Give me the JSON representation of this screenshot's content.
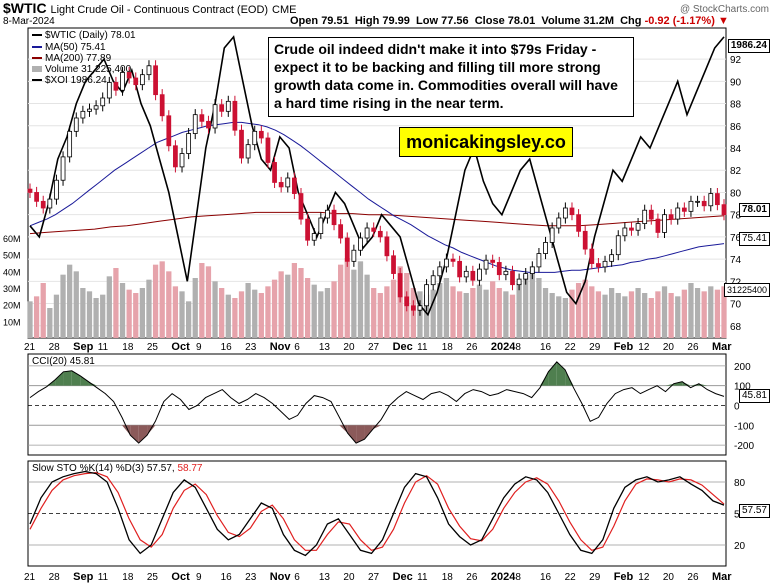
{
  "header": {
    "symbol": "$WTIC",
    "name": "Light Crude Oil - Continuous Contract (EOD)",
    "exchange": "CME",
    "date": "8-Mar-2024",
    "open_label": "Open",
    "open": "79.51",
    "high_label": "High",
    "high": "79.99",
    "low_label": "Low",
    "low": "77.56",
    "close_label": "Close",
    "close": "78.01",
    "volume_label": "Volume",
    "volume": "31.2M",
    "chg_label": "Chg",
    "chg": "-0.92 (-1.17%)",
    "copyright": "@ StockCharts.com"
  },
  "annotation": {
    "note": "Crude oil indeed didn't make it into $79s Friday - expect it to be backing and filling till more strong growth data come in. Commodities overall will have a hard time rising in the near term.",
    "brand": "monicakingsley.co"
  },
  "legend": {
    "price": "$WTIC (Daily) 78.01",
    "ma50": "MA(50) 75.41",
    "ma200": "MA(200) 77.89",
    "volume": "Volume 31,225,400",
    "xoi": "$XOI 1986.24"
  },
  "tags": {
    "xoi": "1986.24",
    "close": "78.01",
    "ma50": "75.41",
    "volume": "31225400",
    "cci": "45.81",
    "sto": "57.57"
  },
  "colors": {
    "up": "#000000",
    "down": "#cc1133",
    "ma50": "#1a1a99",
    "ma200": "#8b0000",
    "volume_up": "#b0b0b0",
    "volume_down": "#e6a3ab",
    "cci_pos": "#4f7f4f",
    "cci_neg": "#8b5a5a",
    "sto_d": "#e02020",
    "sto_k": "#000000"
  },
  "chart_data": {
    "type": "candlestick",
    "price_axis": {
      "ticks": [
        68,
        70,
        72,
        74,
        76,
        78,
        80,
        82,
        84,
        86,
        88,
        90,
        92
      ],
      "range": [
        66.9,
        94.8
      ]
    },
    "volume_axis": {
      "ticks": [
        "10M",
        "20M",
        "30M",
        "40M",
        "50M",
        "60M"
      ],
      "range": [
        0,
        60
      ]
    },
    "x_labels": [
      "21",
      "28",
      "Sep",
      "11",
      "18",
      "25",
      "Oct",
      "9",
      "16",
      "23",
      "Nov",
      "6",
      "13",
      "20",
      "27",
      "Dec",
      "11",
      "18",
      "26",
      "2024",
      "8",
      "16",
      "22",
      "29",
      "Feb",
      "12",
      "20",
      "26",
      "Mar"
    ],
    "x_label_bold": [
      "Sep",
      "Oct",
      "Nov",
      "Dec",
      "2024",
      "Feb",
      "Mar"
    ],
    "close": [
      80.0,
      79.2,
      78.6,
      79.4,
      81.1,
      83.2,
      85.5,
      86.7,
      87.3,
      87.5,
      87.8,
      88.5,
      89.9,
      89.2,
      90.8,
      90.3,
      89.7,
      90.6,
      91.4,
      88.8,
      86.9,
      84.2,
      82.3,
      83.5,
      85.3,
      87.0,
      86.4,
      85.8,
      87.9,
      87.3,
      88.2,
      85.6,
      83.1,
      84.3,
      85.5,
      84.9,
      82.7,
      80.9,
      80.5,
      81.3,
      79.9,
      77.6,
      75.7,
      76.3,
      77.7,
      78.4,
      77.1,
      75.9,
      73.8,
      74.8,
      75.9,
      76.8,
      76.5,
      76.0,
      74.3,
      72.7,
      70.6,
      69.8,
      69.4,
      69.8,
      71.7,
      72.5,
      73.3,
      74.0,
      73.8,
      72.4,
      72.9,
      72.1,
      73.1,
      73.9,
      73.7,
      72.6,
      72.9,
      71.7,
      72.2,
      72.7,
      73.3,
      74.5,
      75.5,
      76.8,
      77.7,
      78.6,
      78.0,
      76.5,
      74.9,
      73.6,
      73.3,
      73.8,
      74.4,
      76.1,
      76.8,
      76.6,
      77.2,
      78.4,
      77.6,
      76.4,
      78.0,
      77.6,
      78.6,
      78.3,
      79.2,
      79.2,
      78.8,
      79.9,
      78.9,
      78.0
    ],
    "ma50": [
      77.0,
      77.3,
      77.6,
      78.0,
      78.5,
      79.0,
      79.6,
      80.2,
      80.8,
      81.4,
      82.0,
      82.5,
      83.0,
      83.5,
      84.0,
      84.5,
      84.8,
      85.1,
      85.4,
      85.6,
      85.8,
      86.0,
      86.1,
      86.2,
      86.3,
      86.3,
      86.2,
      86.1,
      85.9,
      85.6,
      85.2,
      84.7,
      84.2,
      83.6,
      83.0,
      82.4,
      81.8,
      81.2,
      80.6,
      80.0,
      79.4,
      78.9,
      78.4,
      77.9,
      77.5,
      77.1,
      76.6,
      76.1,
      75.7,
      75.3,
      75.0,
      74.6,
      74.3,
      74.0,
      73.7,
      73.4,
      73.2,
      73.0,
      72.9,
      72.8,
      72.8,
      72.8,
      72.8,
      72.9,
      73.0,
      73.0,
      73.1,
      73.2,
      73.3,
      73.4,
      73.5,
      73.7,
      73.8,
      74.0,
      74.1,
      74.3,
      74.5,
      74.7,
      74.9,
      75.1,
      75.2,
      75.3,
      75.4
    ],
    "ma200": [
      76.3,
      76.4,
      76.5,
      76.6,
      76.7,
      76.9,
      77.0,
      77.2,
      77.4,
      77.6,
      77.8,
      77.9,
      78.0,
      78.1,
      78.2,
      78.2,
      78.2,
      78.2,
      78.2,
      78.1,
      78.1,
      78.0,
      78.0,
      77.9,
      77.8,
      77.7,
      77.6,
      77.5,
      77.4,
      77.3,
      77.2,
      77.1,
      77.0,
      77.0,
      77.0,
      77.1,
      77.2,
      77.3,
      77.4,
      77.5,
      77.6,
      77.7,
      77.8,
      77.9
    ],
    "xoi_scaled": [
      77,
      76,
      79,
      83,
      85,
      88,
      90,
      91,
      92,
      90,
      89,
      91,
      88,
      86,
      83,
      80,
      76,
      72,
      78,
      84,
      88,
      93,
      94,
      90,
      86,
      83,
      82,
      85,
      84,
      80,
      78,
      76,
      78,
      80,
      79,
      77,
      75,
      76,
      78,
      77,
      76,
      73,
      70,
      69,
      71,
      74,
      78,
      82,
      84,
      81,
      79,
      78,
      80,
      82,
      83,
      80,
      77,
      74,
      71,
      70,
      72,
      76,
      79,
      82,
      81,
      83,
      85,
      84,
      86,
      88,
      90,
      87,
      89,
      91,
      93,
      94
    ],
    "volume": [
      22,
      25,
      33,
      18,
      26,
      38,
      44,
      40,
      30,
      28,
      24,
      26,
      37,
      42,
      33,
      29,
      27,
      30,
      35,
      44,
      46,
      40,
      31,
      28,
      22,
      36,
      45,
      43,
      34,
      30,
      26,
      24,
      28,
      33,
      29,
      27,
      31,
      35,
      40,
      38,
      45,
      42,
      36,
      32,
      28,
      30,
      34,
      44,
      48,
      41,
      46,
      38,
      30,
      27,
      31,
      35,
      43,
      39,
      30,
      28,
      26,
      29,
      33,
      36,
      31,
      28,
      27,
      30,
      32,
      29,
      34,
      30,
      28,
      26,
      33,
      38,
      43,
      36,
      30,
      27,
      25,
      24,
      29,
      33,
      35,
      31,
      28,
      26,
      30,
      27,
      25,
      28,
      30,
      27,
      24,
      28,
      31,
      27,
      25,
      29,
      33,
      30,
      28,
      31,
      29,
      31
    ],
    "cci": {
      "name": "CCI(20)",
      "value": 45.81,
      "ticks": [
        200,
        100,
        0,
        -100,
        -200
      ],
      "range": [
        -250,
        260
      ],
      "values": [
        40,
        70,
        95,
        130,
        170,
        175,
        150,
        120,
        90,
        60,
        20,
        -60,
        -150,
        -190,
        -150,
        -80,
        20,
        60,
        30,
        -20,
        0,
        40,
        60,
        80,
        40,
        10,
        30,
        60,
        40,
        10,
        -30,
        -70,
        -50,
        10,
        50,
        40,
        20,
        -60,
        -140,
        -190,
        -170,
        -120,
        -70,
        0,
        40,
        70,
        50,
        30,
        60,
        70,
        50,
        20,
        60,
        80,
        70,
        50,
        60,
        80,
        70,
        60,
        40,
        90,
        170,
        220,
        180,
        90,
        10,
        -80,
        -60,
        10,
        60,
        80,
        90,
        60,
        80,
        100,
        70,
        110,
        120,
        90,
        110,
        80,
        60,
        46
      ]
    },
    "sto": {
      "name": "Slow STO %K(14) %D(3)",
      "k": 57.57,
      "d": 58.77,
      "ticks": [
        80,
        50,
        20
      ],
      "range": [
        0,
        100
      ],
      "k_values": [
        40,
        65,
        80,
        85,
        88,
        90,
        88,
        80,
        55,
        25,
        12,
        20,
        45,
        70,
        82,
        75,
        55,
        35,
        25,
        30,
        45,
        60,
        55,
        30,
        15,
        10,
        20,
        40,
        45,
        30,
        15,
        12,
        25,
        50,
        75,
        88,
        85,
        65,
        40,
        28,
        20,
        25,
        45,
        65,
        78,
        85,
        82,
        70,
        50,
        30,
        15,
        12,
        25,
        55,
        75,
        82,
        85,
        80,
        82,
        85,
        78,
        72,
        62,
        58
      ],
      "d_values": [
        35,
        55,
        72,
        82,
        86,
        88,
        89,
        85,
        70,
        45,
        25,
        18,
        30,
        55,
        72,
        78,
        68,
        48,
        32,
        28,
        36,
        52,
        58,
        45,
        25,
        15,
        15,
        30,
        42,
        40,
        25,
        15,
        18,
        35,
        60,
        80,
        86,
        78,
        55,
        38,
        26,
        24,
        35,
        55,
        70,
        80,
        84,
        78,
        62,
        42,
        25,
        15,
        18,
        38,
        62,
        78,
        83,
        82,
        80,
        83,
        82,
        77,
        68,
        59
      ]
    }
  }
}
